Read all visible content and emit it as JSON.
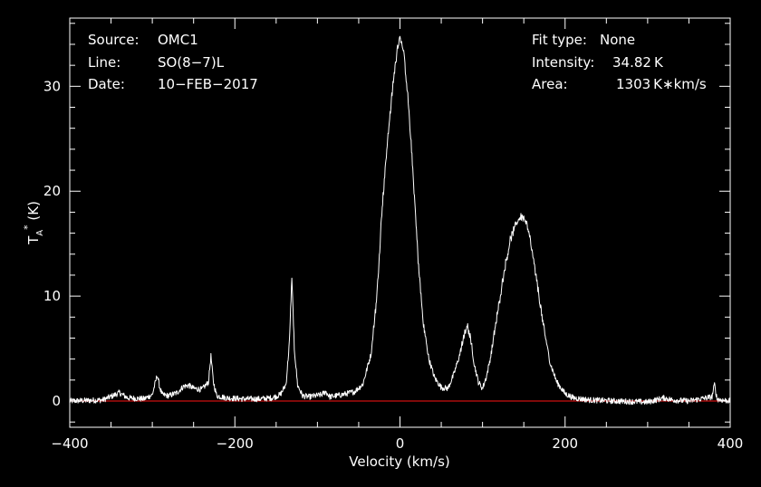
{
  "header": {
    "source_label": "Source:",
    "source_value": "OMC1",
    "line_label": "Line:",
    "line_value": "SO(8−7)L",
    "date_label": "Date:",
    "date_value": "10−FEB−2017",
    "fit_label": "Fit type:",
    "fit_value": "None",
    "intensity_label": "Intensity:",
    "intensity_value": "34.82 K",
    "area_label": "Area:",
    "area_value": "1303 K∗km/s"
  },
  "colors": {
    "background": "#000000",
    "spectrum": "#ffffff",
    "baseline": "#cc1111",
    "frame": "#ffffff"
  },
  "chart_data": {
    "type": "line",
    "title": "",
    "xlabel": "Velocity (km/s)",
    "ylabel_main": "T",
    "ylabel_sub": "A",
    "ylabel_sup": "*",
    "ylabel_tail": " (K)",
    "xlim": [
      -400,
      400
    ],
    "ylim": [
      -2.5,
      36.5
    ],
    "xticks": [
      -400,
      -200,
      0,
      200,
      400
    ],
    "yticks": [
      0,
      10,
      20,
      30
    ],
    "baseline_y": 0,
    "series": [
      {
        "x": [
          -400,
          -360,
          -345,
          -340,
          -330,
          -310,
          -300,
          -294,
          -291,
          -288,
          -280,
          -270,
          -262,
          -256,
          -250,
          -240,
          -232,
          -229,
          -226,
          -222,
          -210,
          -190,
          -170,
          -155,
          -145,
          -138,
          -134,
          -131,
          -128,
          -124,
          -118,
          -110,
          -95,
          -90,
          -85,
          -70,
          -55,
          -45,
          -35,
          -28,
          -22,
          -16,
          -10,
          -5,
          -2,
          0,
          2,
          5,
          10,
          16,
          22,
          28,
          35,
          42,
          50,
          58,
          65,
          72,
          77,
          80,
          82,
          85,
          90,
          95,
          100,
          105,
          110,
          118,
          126,
          134,
          142,
          146,
          150,
          154,
          158,
          166,
          174,
          182,
          190,
          200,
          210,
          230,
          260,
          300,
          320,
          330,
          350,
          378,
          381,
          384,
          390,
          400
        ],
        "y": [
          0,
          0.1,
          0.6,
          0.8,
          0.3,
          0.2,
          0.6,
          2.5,
          1.3,
          0.6,
          0.5,
          0.8,
          1.4,
          1.5,
          1.2,
          1.1,
          1.8,
          4.3,
          1.8,
          0.5,
          0.3,
          0.2,
          0.2,
          0.3,
          0.6,
          1.6,
          5.5,
          11.8,
          5.0,
          1.5,
          0.5,
          0.4,
          0.6,
          0.9,
          0.4,
          0.6,
          0.9,
          1.6,
          4.5,
          10,
          18,
          24,
          29,
          32.5,
          34.2,
          34.8,
          34.2,
          32.8,
          28.5,
          21.5,
          13.5,
          7.5,
          4,
          2.2,
          1.3,
          1.2,
          2.5,
          4.3,
          6.0,
          6.8,
          7.0,
          6.2,
          3.5,
          1.8,
          1.2,
          2.4,
          4.3,
          8.3,
          12.3,
          15.5,
          17.1,
          17.6,
          17.5,
          16.8,
          15.2,
          11.3,
          7.0,
          3.6,
          1.8,
          0.7,
          0.3,
          0.1,
          0,
          -0.1,
          0.3,
          0.1,
          0,
          0.4,
          1.6,
          0.2,
          0.1,
          0
        ]
      }
    ]
  }
}
